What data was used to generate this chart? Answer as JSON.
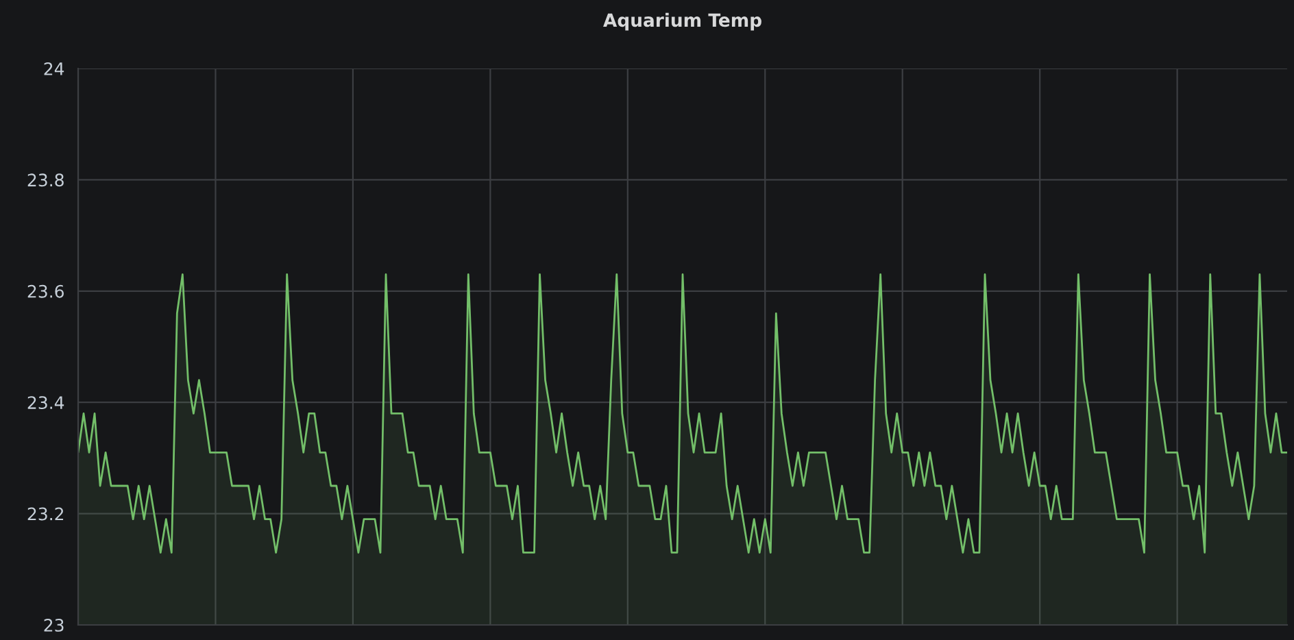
{
  "chart_data": {
    "type": "area",
    "title": "Aquarium Temp",
    "categories": [
      null,
      null,
      null,
      null,
      null,
      null,
      null,
      null,
      null,
      null,
      null,
      null,
      null,
      null,
      null,
      null,
      null,
      null,
      null,
      null,
      null,
      null,
      null,
      null,
      null,
      null,
      null,
      null,
      null,
      null,
      null,
      null,
      null,
      null,
      null,
      null,
      null,
      null,
      null,
      null,
      null,
      null,
      null,
      null,
      null,
      null,
      null,
      null,
      null,
      null,
      null,
      null,
      null,
      null,
      null,
      null,
      null,
      null,
      null,
      null,
      null,
      null,
      null,
      null,
      null,
      null,
      null,
      null,
      null,
      null,
      null,
      null,
      null,
      null,
      null,
      null,
      null,
      null,
      null,
      null,
      null,
      null,
      null,
      null,
      null,
      null,
      null,
      null,
      null,
      null,
      null,
      null,
      null,
      null,
      null,
      null,
      null,
      null,
      null,
      null,
      null,
      null,
      null,
      null,
      null,
      null,
      null,
      null,
      null,
      null,
      null,
      null,
      null,
      null,
      null,
      null,
      null,
      null,
      null,
      null,
      null,
      null,
      null,
      null,
      null,
      null,
      null,
      null,
      null,
      null,
      null,
      null,
      null,
      null,
      null,
      null,
      null,
      null,
      null,
      null,
      null,
      null,
      null,
      null,
      null,
      null,
      null,
      null,
      null,
      null,
      null,
      null,
      null,
      null,
      null,
      null,
      null,
      null,
      null,
      null,
      null,
      null,
      null,
      null,
      null,
      null,
      null,
      null,
      null,
      null,
      null,
      null,
      null,
      null,
      null,
      null,
      null,
      null,
      null,
      null,
      null,
      null,
      null,
      null,
      null,
      null,
      null,
      null,
      null,
      null,
      null,
      null,
      null,
      null,
      null,
      null,
      null,
      null,
      null,
      null,
      null,
      null,
      null,
      null,
      null,
      null,
      null,
      null,
      null,
      null,
      null,
      null,
      null,
      null,
      null,
      null,
      null,
      null,
      null,
      null,
      null
    ],
    "series": [
      {
        "color": "#73bf69",
        "values": [
          23.31,
          23.38,
          23.31,
          23.38,
          23.25,
          23.31,
          23.25,
          23.25,
          23.25,
          23.25,
          23.19,
          23.25,
          23.19,
          23.25,
          23.19,
          23.13,
          23.19,
          23.13,
          23.56,
          23.63,
          23.44,
          23.38,
          23.44,
          23.38,
          23.31,
          23.31,
          23.31,
          23.31,
          23.25,
          23.25,
          23.25,
          23.25,
          23.19,
          23.25,
          23.19,
          23.19,
          23.13,
          23.19,
          23.63,
          23.44,
          23.38,
          23.31,
          23.38,
          23.38,
          23.31,
          23.31,
          23.25,
          23.25,
          23.19,
          23.25,
          23.19,
          23.13,
          23.19,
          23.19,
          23.19,
          23.13,
          23.63,
          23.38,
          23.38,
          23.38,
          23.31,
          23.31,
          23.25,
          23.25,
          23.25,
          23.19,
          23.25,
          23.19,
          23.19,
          23.19,
          23.13,
          23.63,
          23.38,
          23.31,
          23.31,
          23.31,
          23.25,
          23.25,
          23.25,
          23.19,
          23.25,
          23.13,
          23.13,
          23.13,
          23.63,
          23.44,
          23.38,
          23.31,
          23.38,
          23.31,
          23.25,
          23.31,
          23.25,
          23.25,
          23.19,
          23.25,
          23.19,
          23.44,
          23.63,
          23.38,
          23.31,
          23.31,
          23.25,
          23.25,
          23.25,
          23.19,
          23.19,
          23.25,
          23.13,
          23.13,
          23.63,
          23.38,
          23.31,
          23.38,
          23.31,
          23.31,
          23.31,
          23.38,
          23.25,
          23.19,
          23.25,
          23.19,
          23.13,
          23.19,
          23.13,
          23.19,
          23.13,
          23.56,
          23.38,
          23.31,
          23.25,
          23.31,
          23.25,
          23.31,
          23.31,
          23.31,
          23.31,
          23.25,
          23.19,
          23.25,
          23.19,
          23.19,
          23.19,
          23.13,
          23.13,
          23.44,
          23.63,
          23.38,
          23.31,
          23.38,
          23.31,
          23.31,
          23.25,
          23.31,
          23.25,
          23.31,
          23.25,
          23.25,
          23.19,
          23.25,
          23.19,
          23.13,
          23.19,
          23.13,
          23.13,
          23.63,
          23.44,
          23.38,
          23.31,
          23.38,
          23.31,
          23.38,
          23.31,
          23.25,
          23.31,
          23.25,
          23.25,
          23.19,
          23.25,
          23.19,
          23.19,
          23.19,
          23.63,
          23.44,
          23.38,
          23.31,
          23.31,
          23.31,
          23.25,
          23.19,
          23.19,
          23.19,
          23.19,
          23.19,
          23.13,
          23.63,
          23.44,
          23.38,
          23.31,
          23.31,
          23.31,
          23.25,
          23.25,
          23.19,
          23.25,
          23.13,
          23.63,
          23.38,
          23.38,
          23.31,
          23.25,
          23.31,
          23.25,
          23.19,
          23.25,
          23.63,
          23.38,
          23.31,
          23.38,
          23.31,
          23.31
        ]
      }
    ],
    "ylim": [
      23,
      24
    ],
    "yticks": [
      23,
      23.2,
      23.4,
      23.6,
      23.8,
      24
    ],
    "grid": true,
    "tick_labels": "y"
  }
}
